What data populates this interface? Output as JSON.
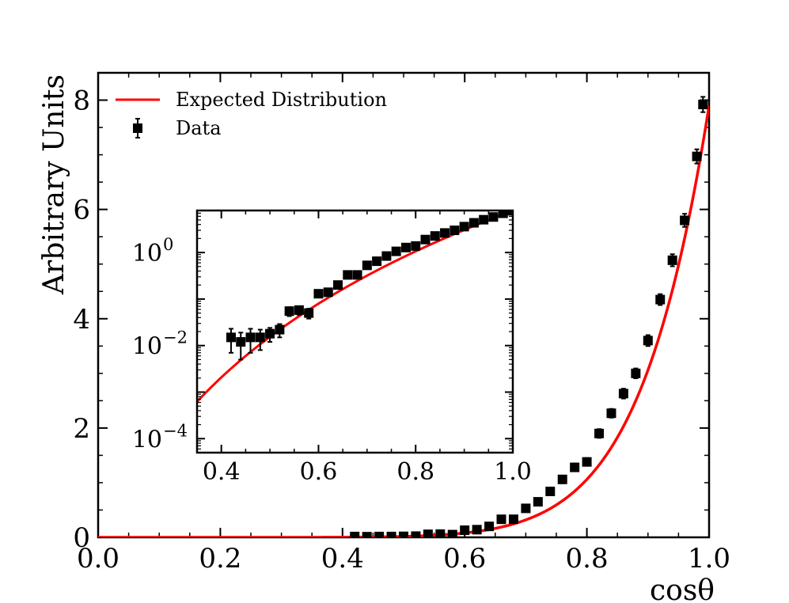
{
  "colors": {
    "fit_line": "#ff0000",
    "data_marker": "#000000",
    "axis": "#000000"
  },
  "chart_data": [
    {
      "id": "main",
      "type": "scatter",
      "xlabel": "cosθ",
      "ylabel": "Arbitrary Units",
      "xlim": [
        0.0,
        1.0
      ],
      "ylim": [
        0,
        8.5
      ],
      "xticks": [
        0.0,
        0.2,
        0.4,
        0.6,
        0.8,
        1.0
      ],
      "xtick_labels": [
        "0.0",
        "0.2",
        "0.4",
        "0.6",
        "0.8",
        "1.0"
      ],
      "yticks": [
        0,
        2,
        4,
        6,
        8
      ],
      "ytick_labels": [
        "0",
        "2",
        "4",
        "6",
        "8"
      ],
      "legend_position": "top-left",
      "legend": [
        "Expected Distribution",
        "Data"
      ],
      "series": [
        {
          "name": "Expected Distribution",
          "kind": "line",
          "model": "power",
          "scale": 7.9,
          "exponent": 9.0,
          "x_range": [
            0.0,
            1.0
          ]
        },
        {
          "name": "Data",
          "kind": "errorbar",
          "x": [
            0.42,
            0.44,
            0.46,
            0.48,
            0.5,
            0.52,
            0.54,
            0.56,
            0.58,
            0.6,
            0.62,
            0.64,
            0.66,
            0.68,
            0.7,
            0.72,
            0.74,
            0.76,
            0.78,
            0.8,
            0.82,
            0.84,
            0.86,
            0.88,
            0.9,
            0.92,
            0.94,
            0.96,
            0.98,
            0.99
          ],
          "y": [
            0.015,
            0.012,
            0.015,
            0.015,
            0.018,
            0.022,
            0.055,
            0.058,
            0.05,
            0.13,
            0.14,
            0.2,
            0.33,
            0.33,
            0.53,
            0.65,
            0.84,
            1.06,
            1.28,
            1.38,
            1.9,
            2.27,
            2.63,
            3.0,
            3.6,
            4.35,
            5.07,
            5.8,
            6.97,
            7.92
          ],
          "yerr": [
            0.008,
            0.007,
            0.008,
            0.007,
            0.006,
            0.007,
            0.012,
            0.012,
            0.012,
            0.02,
            0.02,
            0.03,
            0.04,
            0.04,
            0.05,
            0.06,
            0.06,
            0.07,
            0.07,
            0.07,
            0.08,
            0.08,
            0.09,
            0.09,
            0.1,
            0.1,
            0.11,
            0.12,
            0.13,
            0.14
          ]
        }
      ]
    },
    {
      "id": "inset",
      "type": "scatter",
      "yscale": "log",
      "xlim": [
        0.35,
        1.0
      ],
      "ylim": [
        5e-05,
        8.0
      ],
      "xticks": [
        0.4,
        0.6,
        0.8,
        1.0
      ],
      "xtick_labels": [
        "0.4",
        "0.6",
        "0.8",
        "1.0"
      ],
      "ytick_bases": [
        "10",
        "10",
        "10"
      ],
      "ytick_exponents": [
        "0",
        "−2",
        "−4"
      ],
      "ytick_values": [
        1.0,
        0.01,
        0.0001
      ],
      "series_ref": "main"
    }
  ]
}
